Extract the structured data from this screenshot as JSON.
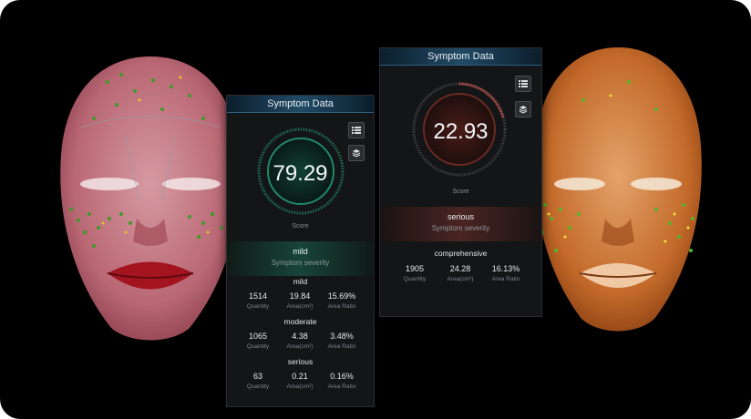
{
  "colors": {
    "background": "#000000",
    "panel": "#141517",
    "title_bar": "#214a66",
    "mild_ring": "#1f8a63",
    "serious_ring": "#c0463a"
  },
  "icons": {
    "list": "list-icon",
    "layers": "layers-icon"
  },
  "left_panel": {
    "title": "Symptom Data",
    "score": "79.29",
    "score_label": "Score",
    "severity": "mild",
    "severity_label": "Symptom severity",
    "sections": [
      {
        "heading": "mild",
        "stats": [
          {
            "value": "1514",
            "label": "Quantity"
          },
          {
            "value": "19.84",
            "label": "Area(cm²)"
          },
          {
            "value": "15.69%",
            "label": "Area Ratio"
          }
        ]
      },
      {
        "heading": "moderate",
        "stats": [
          {
            "value": "1065",
            "label": "Quantity"
          },
          {
            "value": "4.38",
            "label": "Area(cm²)"
          },
          {
            "value": "3.48%",
            "label": "Area Ratio"
          }
        ]
      },
      {
        "heading": "serious",
        "stats": [
          {
            "value": "63",
            "label": "Quantity"
          },
          {
            "value": "0.21",
            "label": "Area(cm²)"
          },
          {
            "value": "0.16%",
            "label": "Area Ratio"
          }
        ]
      }
    ]
  },
  "right_panel": {
    "title": "Symptom Data",
    "score": "22.93",
    "score_label": "Score",
    "severity": "serious",
    "severity_label": "Symptom severity",
    "sections": [
      {
        "heading": "comprehensive",
        "stats": [
          {
            "value": "1905",
            "label": "Quantity"
          },
          {
            "value": "24.28",
            "label": "Area(cm²)"
          },
          {
            "value": "16.13%",
            "label": "Area Ratio"
          }
        ]
      }
    ]
  }
}
